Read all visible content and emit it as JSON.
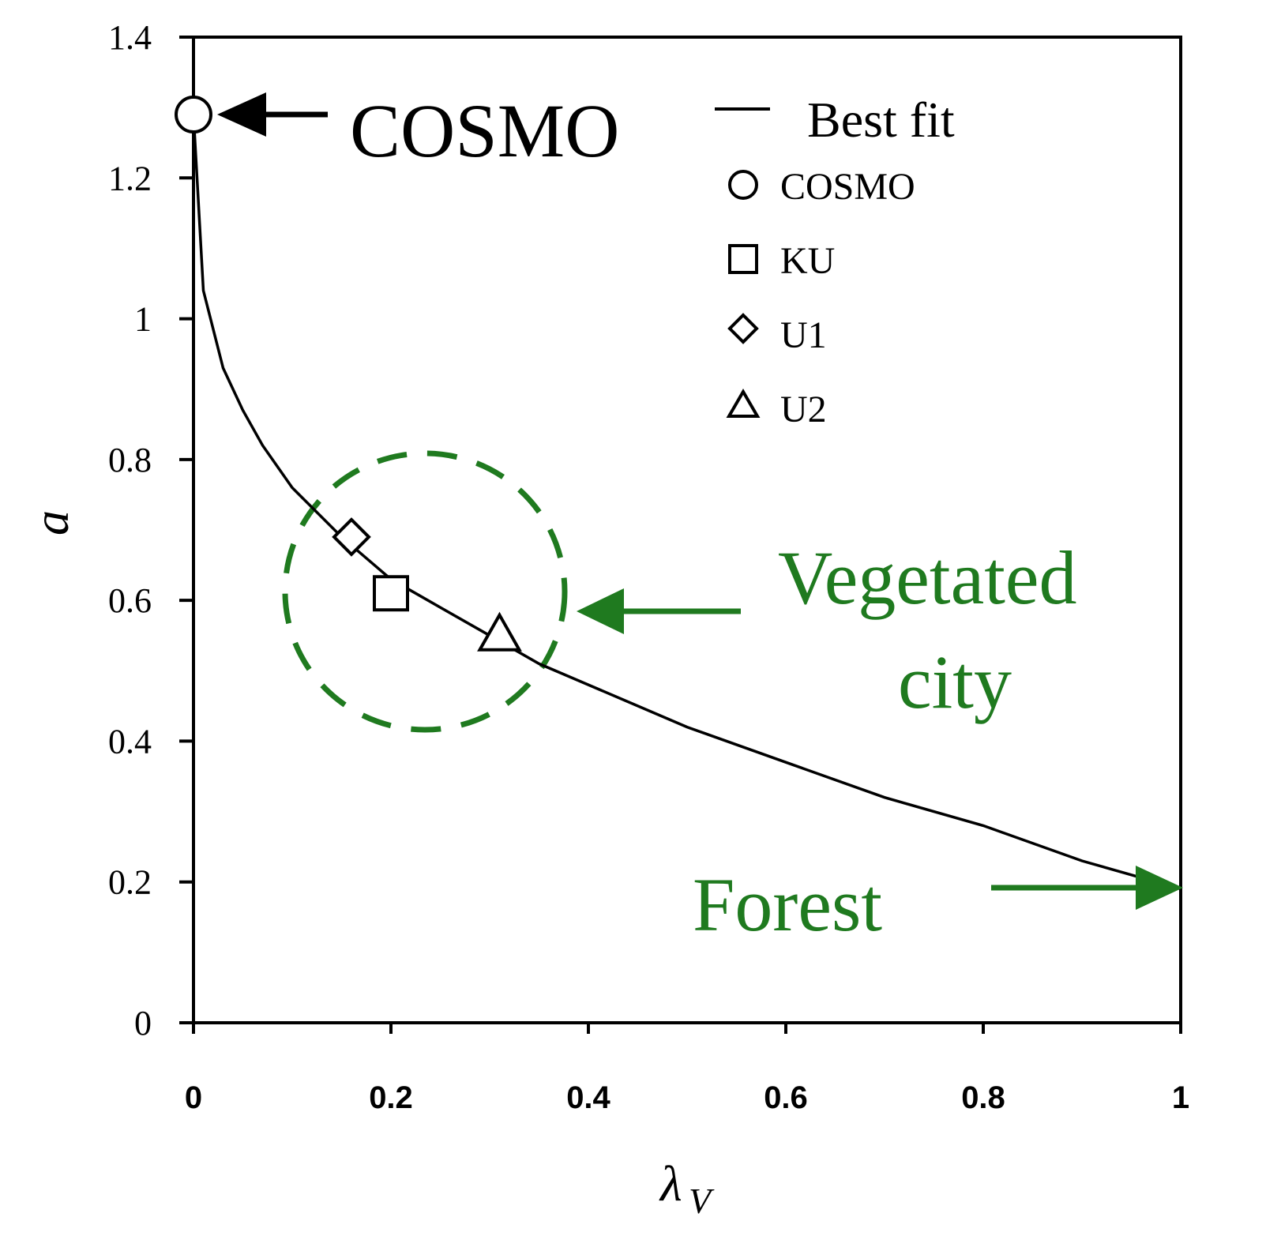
{
  "chart_data": {
    "type": "scatter",
    "xlabel": "λ",
    "xlabel_subscript": "V",
    "ylabel": "a",
    "xlim": [
      0,
      1
    ],
    "ylim": [
      0,
      1.4
    ],
    "x_ticks": [
      "0",
      "0.2",
      "0.4",
      "0.6",
      "0.8",
      "1"
    ],
    "y_ticks": [
      "0",
      "0.2",
      "0.4",
      "0.6",
      "0.8",
      "1",
      "1.2",
      "1.4"
    ],
    "legend_position": "top-right",
    "best_fit": {
      "name": "Best fit",
      "x": [
        0,
        0.01,
        0.03,
        0.05,
        0.07,
        0.1,
        0.15,
        0.2,
        0.25,
        0.3,
        0.35,
        0.4,
        0.5,
        0.6,
        0.7,
        0.8,
        0.9,
        1.0
      ],
      "y": [
        1.29,
        1.04,
        0.93,
        0.87,
        0.82,
        0.76,
        0.69,
        0.63,
        0.59,
        0.55,
        0.51,
        0.48,
        0.42,
        0.37,
        0.32,
        0.28,
        0.23,
        0.19
      ]
    },
    "series": [
      {
        "name": "COSMO",
        "marker": "circle",
        "x": [
          0.0
        ],
        "y": [
          1.29
        ]
      },
      {
        "name": "KU",
        "marker": "square",
        "x": [
          0.2
        ],
        "y": [
          0.61
        ]
      },
      {
        "name": "U1",
        "marker": "diamond",
        "x": [
          0.16
        ],
        "y": [
          0.69
        ]
      },
      {
        "name": "U2",
        "marker": "triangle",
        "x": [
          0.31
        ],
        "y": [
          0.55
        ]
      }
    ],
    "annotations": {
      "cosmo": "COSMO",
      "vegetated_line1": "Vegetated",
      "vegetated_line2": "city",
      "forest": "Forest"
    },
    "colors": {
      "annotation_green": "#1f7a1f",
      "line": "#000000"
    }
  }
}
